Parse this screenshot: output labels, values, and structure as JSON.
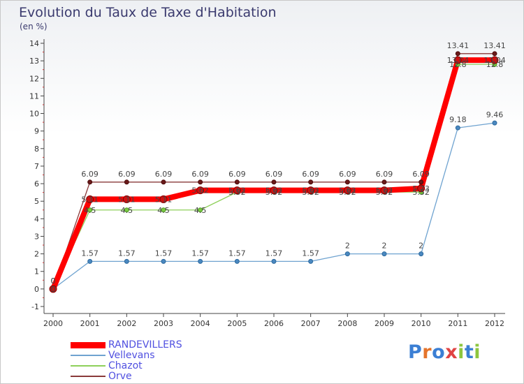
{
  "title": "Evolution du Taux de Taxe d'Habitation",
  "subtitle": "(en %)",
  "logo": {
    "text": "Proxiti",
    "letters": [
      "P",
      "r",
      "o",
      "x",
      "i",
      "t",
      "i"
    ],
    "colors": [
      "#3b7fd4",
      "#e5742b",
      "#3b7fd4",
      "#e04343",
      "#8dc63f",
      "#3b7fd4",
      "#8dc63f"
    ]
  },
  "chart_data": {
    "type": "line",
    "title": "Evolution du Taux de Taxe d'Habitation",
    "ylabel": "(en %)",
    "xlabel": "",
    "x": [
      "2000",
      "2001",
      "2002",
      "2003",
      "2004",
      "2005",
      "2006",
      "2007",
      "2008",
      "2009",
      "2010",
      "2011",
      "2012"
    ],
    "ylim": [
      -1,
      14
    ],
    "yticks": [
      -1,
      0,
      1,
      2,
      3,
      4,
      5,
      6,
      7,
      8,
      9,
      10,
      11,
      12,
      13,
      14
    ],
    "grid": false,
    "legend": "bottom-left",
    "series": [
      {
        "name": "RANDEVILLERS",
        "color": "#ff0000",
        "values": [
          0,
          5.11,
          5.11,
          5.11,
          5.62,
          5.62,
          5.62,
          5.62,
          5.62,
          5.62,
          5.73,
          13.04,
          13.04
        ],
        "labels": [
          "0",
          "5.11",
          "5.11",
          "5.11",
          "5.62",
          "5.62",
          "5.62",
          "5.62",
          "5.62",
          "5.62",
          "5.73",
          "13.04",
          "13.04"
        ]
      },
      {
        "name": "Vellevans",
        "color": "#6fa3d0",
        "values": [
          0,
          1.57,
          1.57,
          1.57,
          1.57,
          1.57,
          1.57,
          1.57,
          2,
          2,
          2,
          9.18,
          9.46
        ],
        "labels": [
          "0",
          "1.57",
          "1.57",
          "1.57",
          "1.57",
          "1.57",
          "1.57",
          "1.57",
          "2",
          "2",
          "2",
          "9.18",
          "9.46"
        ]
      },
      {
        "name": "Chazot",
        "color": "#8ed05a",
        "values": [
          0,
          4.5,
          4.5,
          4.5,
          4.5,
          5.52,
          5.52,
          5.52,
          5.52,
          5.52,
          5.52,
          12.8,
          12.8
        ],
        "labels": [
          "0",
          "4.5",
          "4.5",
          "4.5",
          "4.5",
          "5.52",
          "5.52",
          "5.52",
          "5.52",
          "5.52",
          "5.52",
          "12.8",
          "12.8"
        ]
      },
      {
        "name": "Orve",
        "color": "#8a3a3a",
        "values": [
          0,
          6.09,
          6.09,
          6.09,
          6.09,
          6.09,
          6.09,
          6.09,
          6.09,
          6.09,
          6.09,
          13.41,
          13.41
        ],
        "labels": [
          "0",
          "6.09",
          "6.09",
          "6.09",
          "6.09",
          "6.09",
          "6.09",
          "6.09",
          "6.09",
          "6.09",
          "6.09",
          "13.41",
          "13.41"
        ]
      }
    ]
  }
}
